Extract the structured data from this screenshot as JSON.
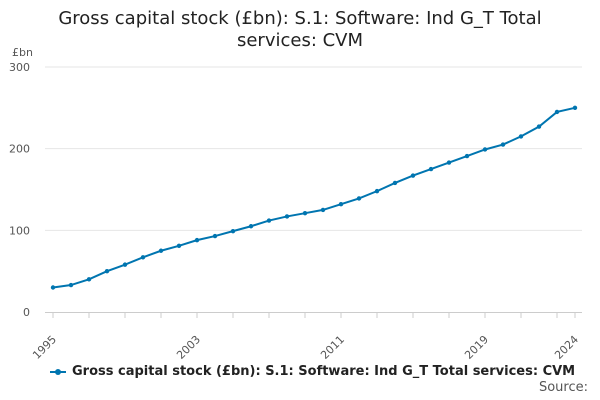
{
  "title_line1": "Gross capital stock (£bn): S.1: Software: Ind G_T Total",
  "title_line2": "services: CVM",
  "source_label": "Source:",
  "colors": {
    "series": "#0075b0",
    "grid": "#e6e6e6",
    "axis": "#cccccc"
  },
  "chart_data": {
    "type": "line",
    "title": "Gross capital stock (£bn): S.1: Software: Ind G_T Total services: CVM",
    "ylabel": "£bn",
    "ylim": [
      0,
      300
    ],
    "yticks": [
      0,
      100,
      200,
      300
    ],
    "xlim": [
      1995,
      2024
    ],
    "xticks": [
      1995,
      2003,
      2011,
      2019,
      2024
    ],
    "grid": true,
    "legend_position": "bottom",
    "series": [
      {
        "name": "Gross capital stock (£bn): S.1: Software: Ind G_T Total services: CVM",
        "x": [
          1995,
          1996,
          1997,
          1998,
          1999,
          2000,
          2001,
          2002,
          2003,
          2004,
          2005,
          2006,
          2007,
          2008,
          2009,
          2010,
          2011,
          2012,
          2013,
          2014,
          2015,
          2016,
          2017,
          2018,
          2019,
          2020,
          2021,
          2022,
          2023,
          2024
        ],
        "values": [
          30,
          33,
          40,
          50,
          58,
          67,
          75,
          81,
          88,
          93,
          99,
          105,
          112,
          117,
          121,
          125,
          132,
          139,
          148,
          158,
          167,
          175,
          183,
          191,
          199,
          205,
          215,
          227,
          245,
          250
        ]
      }
    ]
  }
}
